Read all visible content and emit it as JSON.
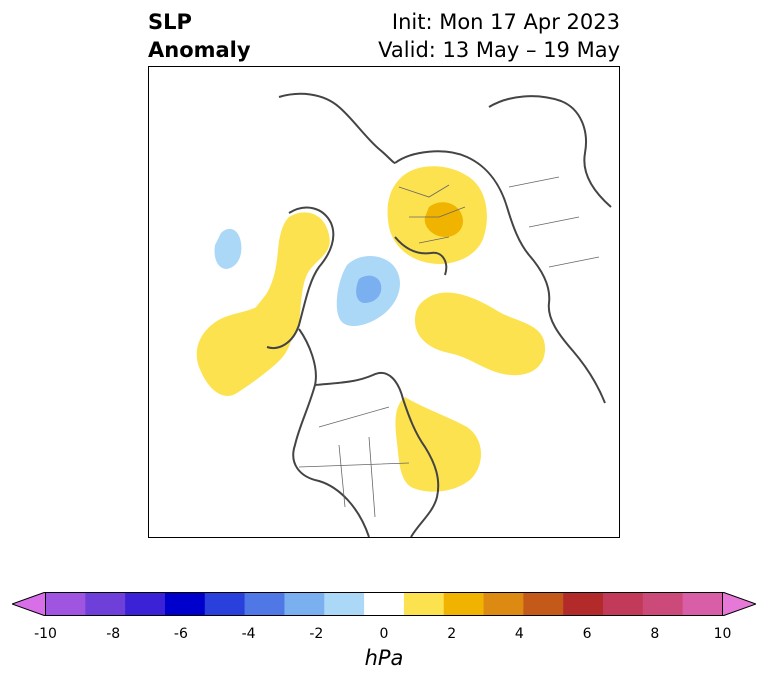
{
  "title": {
    "line1": "SLP",
    "line2": "Anomaly"
  },
  "subtitle": {
    "line1": "Init: Mon 17 Apr 2023",
    "line2": "Valid: 13 May – 19 May"
  },
  "colorbar": {
    "unit": "hPa",
    "tick_labels": [
      "-10",
      "-8",
      "-6",
      "-4",
      "-2",
      "0",
      "2",
      "4",
      "6",
      "8",
      "10"
    ],
    "colors": [
      "#d86ee8",
      "#a055e0",
      "#6e3fd9",
      "#3b22d6",
      "#0000cc",
      "#2a40dc",
      "#4f78e6",
      "#7ab0f0",
      "#acd8f8",
      "#ffffff",
      "#fde24f",
      "#f0b400",
      "#dc8a12",
      "#c45a1a",
      "#b22a2a",
      "#c23a5a",
      "#cc4a7a",
      "#d85ea8",
      "#e678d8"
    ],
    "range": [
      -10,
      10
    ],
    "extend": "both"
  },
  "map": {
    "projection": "north polar stereographic",
    "anomalies": [
      {
        "region": "northern Europe / western Russia",
        "sign": "positive",
        "max_hPa": 4
      },
      {
        "region": "Atlantic north of Scandinavia",
        "sign": "negative",
        "min_hPa": -4
      },
      {
        "region": "Barents Sea margin",
        "sign": "negative",
        "min_hPa": -2
      },
      {
        "region": "Greenland / Canadian Arctic",
        "sign": "positive",
        "max_hPa": 2
      },
      {
        "region": "North Atlantic off Newfoundland",
        "sign": "positive",
        "max_hPa": 2
      },
      {
        "region": "Eastern Siberia / Kamchatka",
        "sign": "positive",
        "max_hPa": 2
      }
    ]
  }
}
